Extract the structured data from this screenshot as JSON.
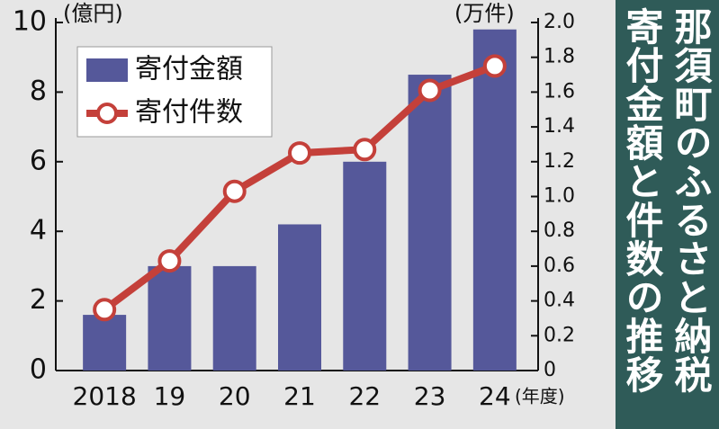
{
  "chart_data": {
    "type": "bar",
    "title": "那須町のふるさと納税寄付金額と件数の推移",
    "y_label": "(億円)",
    "y2_label": "(万件)",
    "x_label": "(年度)",
    "categories": [
      "2018",
      "19",
      "20",
      "21",
      "22",
      "23",
      "24"
    ],
    "series": [
      {
        "name": "寄付金額",
        "color": "#55589a",
        "values": [
          1.6,
          3.0,
          3.0,
          4.2,
          6.0,
          8.5,
          9.8
        ]
      },
      {
        "name": "寄付件数",
        "color": "#c4403a",
        "type": "line",
        "axis": "y2",
        "values": [
          0.35,
          0.63,
          1.03,
          1.25,
          1.27,
          1.61,
          1.75
        ]
      }
    ],
    "ylim": [
      0,
      10
    ],
    "yticks": [
      0,
      2,
      4,
      6,
      8,
      10
    ],
    "y2lim": [
      0,
      2
    ],
    "y2ticks": [
      0,
      0.2,
      0.4,
      0.6,
      0.8,
      {
        "value": 1,
        "label": "1.0"
      },
      1.2,
      1.4,
      1.6,
      1.8,
      {
        "value": 2,
        "label": "2.0"
      }
    ]
  }
}
